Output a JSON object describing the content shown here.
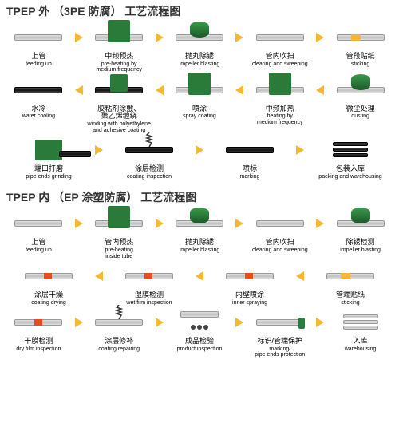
{
  "colors": {
    "arrow": "#f5b82e",
    "green": "#2a7a3a",
    "pipe_light": "#d0d0d0",
    "pipe_dark": "#222222",
    "accent_red": "#e84c1a",
    "title": "#333333"
  },
  "sections": [
    {
      "title": "TPEP 外 （3PE 防腐） 工艺流程图",
      "rows": [
        {
          "dir": "r",
          "steps": [
            {
              "cn": "上管",
              "en": "feeding up",
              "icon": "pipe"
            },
            {
              "cn": "中频预热",
              "en": "pre-heating by\nmedium frequency",
              "icon": "pipe-greenbox"
            },
            {
              "cn": "抛丸除锈",
              "en": "impeller blasting",
              "icon": "pipe-greencyl"
            },
            {
              "cn": "管内吹扫",
              "en": "clearing and sweeping",
              "icon": "pipe"
            },
            {
              "cn": "管段贴纸",
              "en": "sticking",
              "icon": "pipe-yellow"
            }
          ]
        },
        {
          "dir": "l",
          "steps": [
            {
              "cn": "水冷",
              "en": "water cooling",
              "icon": "blackpipe"
            },
            {
              "cn": "胶粘剂涂敷、\n聚乙烯缠绕",
              "en": "winding with polyethylene\nand adhesive coating",
              "icon": "blackpipe-green"
            },
            {
              "cn": "喷涂",
              "en": "spray coating",
              "icon": "pipe-greenbox"
            },
            {
              "cn": "中频加热",
              "en": "heating by\nmedium frequency",
              "icon": "pipe-greenbox"
            },
            {
              "cn": "微尘处理",
              "en": "dusting",
              "icon": "pipe-greencyl"
            }
          ]
        },
        {
          "dir": "r",
          "steps": [
            {
              "cn": "端口打磨",
              "en": "pipe ends grinding",
              "icon": "grinder"
            },
            {
              "cn": "涂层检测",
              "en": "coating inspection",
              "icon": "blackpipe-spring"
            },
            {
              "cn": "喷标",
              "en": "marking",
              "icon": "blackpipe"
            },
            {
              "cn": "包装入库",
              "en": "packing and warehousing",
              "icon": "blackstack"
            }
          ]
        }
      ]
    },
    {
      "title": "TPEP 内 （EP 涂塑防腐） 工艺流程图",
      "rows": [
        {
          "dir": "r",
          "steps": [
            {
              "cn": "上管",
              "en": "feeding up",
              "icon": "pipe"
            },
            {
              "cn": "管内预热",
              "en": "pre-heating\ninside tube",
              "icon": "pipe-greenbox"
            },
            {
              "cn": "抛丸除锈",
              "en": "impeller blasting",
              "icon": "pipe-greencyl"
            },
            {
              "cn": "管内吹扫",
              "en": "clearing and sweeping",
              "icon": "pipe"
            },
            {
              "cn": "除锈检测",
              "en": "impeller blasting",
              "icon": "pipe-greencyl"
            }
          ]
        },
        {
          "dir": "l",
          "steps": [
            {
              "cn": "涂层干燥",
              "en": "coating drying",
              "icon": "pipe-red"
            },
            {
              "cn": "湿膜检测",
              "en": "wet film inspection",
              "icon": "pipe-red"
            },
            {
              "cn": "内壁喷涂",
              "en": "inner spraying",
              "icon": "pipe-red"
            },
            {
              "cn": "管端贴纸",
              "en": "sticking",
              "icon": "pipe-yellow"
            }
          ]
        },
        {
          "dir": "r",
          "steps": [
            {
              "cn": "干膜检测",
              "en": "dry film inspection",
              "icon": "pipe-red"
            },
            {
              "cn": "涂层修补",
              "en": "coating repairing",
              "icon": "pipe-spring"
            },
            {
              "cn": "成品检验",
              "en": "product inspection",
              "icon": "pipe-dots"
            },
            {
              "cn": "标识/管端保护",
              "en": "marking/\npipe ends protection",
              "icon": "pipe-green-end"
            },
            {
              "cn": "入库",
              "en": "warehousing",
              "icon": "stack"
            }
          ]
        }
      ]
    }
  ]
}
